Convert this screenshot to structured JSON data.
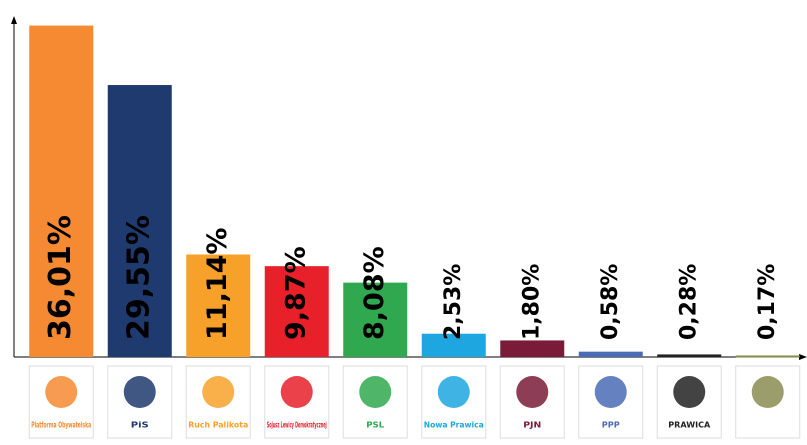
{
  "chart_data": {
    "type": "bar",
    "categories": [
      "Platforma Obywatelska",
      "PiS",
      "Ruch Palikota",
      "Sojusz Lewicy Demokratycznej",
      "PSL",
      "Nowa Prawica",
      "PJN",
      "PPP",
      "PRAWICA",
      null
    ],
    "values": [
      36.01,
      29.55,
      11.14,
      9.87,
      8.08,
      2.53,
      1.8,
      0.58,
      0.28,
      0.17
    ],
    "value_labels": [
      "36,01%",
      "29,55%",
      "11,14%",
      "9,87%",
      "8,08%",
      "2,53%",
      "1,80%",
      "0,58%",
      "0,28%",
      "0,17%"
    ],
    "colors": [
      "#f68a33",
      "#1f3a6e",
      "#f8a12a",
      "#e8202a",
      "#2fa84f",
      "#1ea6e0",
      "#7a1b3a",
      "#4a6bb5",
      "#222222",
      "#8a8c50"
    ],
    "ylim": [
      0,
      36.4
    ]
  }
}
